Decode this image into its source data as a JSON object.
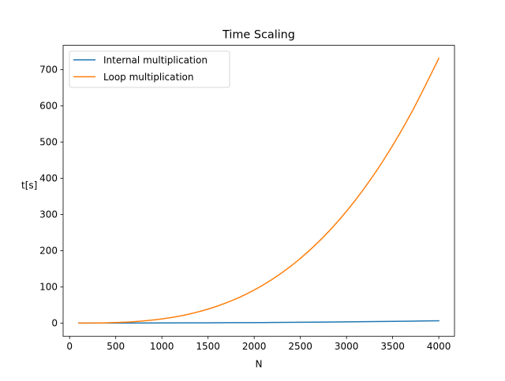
{
  "chart_data": {
    "type": "line",
    "title": "Time Scaling",
    "xlabel": "N",
    "ylabel": "t[s]",
    "xlim": [
      -70,
      4170
    ],
    "ylim": [
      -36.5,
      767
    ],
    "xticks": [
      0,
      500,
      1000,
      1500,
      2000,
      2500,
      3000,
      3500,
      4000
    ],
    "yticks": [
      0,
      100,
      200,
      300,
      400,
      500,
      600,
      700
    ],
    "grid": false,
    "legend_position": "upper-left",
    "series": [
      {
        "name": "Internal multiplication",
        "color": "#1f77b4",
        "x": [
          100,
          400,
          700,
          1000,
          1300,
          1600,
          1900,
          2200,
          2500,
          2800,
          3100,
          3400,
          3700,
          4000
        ],
        "y": [
          0.0,
          0.1,
          0.2,
          0.4,
          0.6,
          0.9,
          1.2,
          1.7,
          2.2,
          2.8,
          3.5,
          4.3,
          5.3,
          6.4
        ]
      },
      {
        "name": "Loop multiplication",
        "color": "#ff7f0e",
        "x": [
          100,
          400,
          700,
          1000,
          1300,
          1600,
          1900,
          2200,
          2500,
          2800,
          3100,
          3400,
          3700,
          4000
        ],
        "y": [
          0.0,
          0.7,
          3.8,
          11.4,
          25.1,
          46.8,
          78.3,
          121.6,
          178.5,
          251.0,
          340.8,
          449.6,
          579.4,
          731.0
        ]
      }
    ]
  }
}
